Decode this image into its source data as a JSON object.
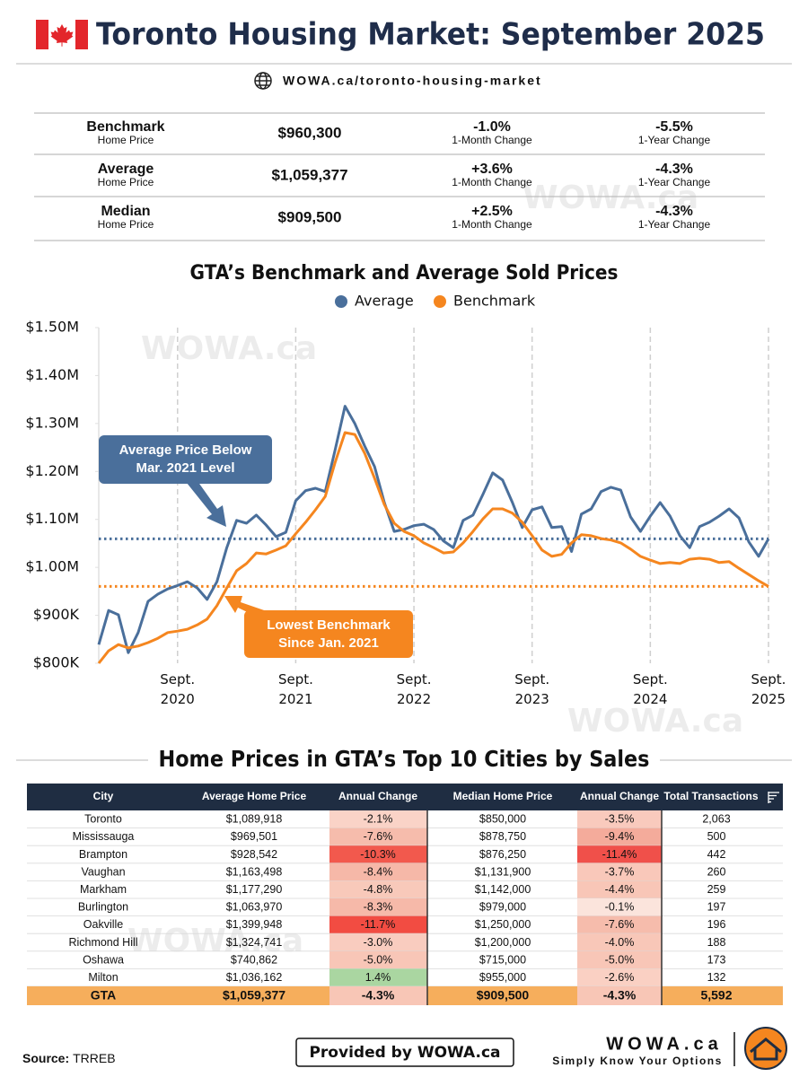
{
  "header": {
    "title": "Toronto Housing Market: September 2025",
    "url": "WOWA.ca/toronto-housing-market"
  },
  "watermark": "WOWA.ca",
  "summary": {
    "rows": [
      {
        "label": "Benchmark",
        "sublabel": "Home Price",
        "price": "$960,300",
        "month_change": "-1.0%",
        "month_label": "1-Month Change",
        "year_change": "-5.5%",
        "year_label": "1-Year Change"
      },
      {
        "label": "Average",
        "sublabel": "Home Price",
        "price": "$1,059,377",
        "month_change": "+3.6%",
        "month_label": "1-Month Change",
        "year_change": "-4.3%",
        "year_label": "1-Year Change"
      },
      {
        "label": "Median",
        "sublabel": "Home Price",
        "price": "$909,500",
        "month_change": "+2.5%",
        "month_label": "1-Month Change",
        "year_change": "-4.3%",
        "year_label": "1-Year Change"
      }
    ]
  },
  "chart_data": {
    "type": "line",
    "title": "GTA’s Benchmark and Average Sold Prices",
    "categories": [
      null,
      null,
      null,
      null,
      null,
      null,
      null,
      null,
      "Sept. 2020",
      null,
      null,
      null,
      null,
      null,
      null,
      null,
      null,
      null,
      null,
      null,
      "Sept. 2021",
      null,
      null,
      null,
      null,
      null,
      null,
      null,
      null,
      null,
      null,
      null,
      "Sept. 2022",
      null,
      null,
      null,
      null,
      null,
      null,
      null,
      null,
      null,
      null,
      null,
      "Sept. 2023",
      null,
      null,
      null,
      null,
      null,
      null,
      null,
      null,
      null,
      null,
      null,
      "Sept. 2024",
      null,
      null,
      null,
      null,
      null,
      null,
      null,
      null,
      null,
      null,
      null,
      "Sept. 2025"
    ],
    "series": [
      {
        "name": "Average",
        "color": "#4a6f9b",
        "values": [
          839000,
          910000,
          901000,
          822000,
          864000,
          929000,
          944000,
          955000,
          962000,
          970000,
          957000,
          933000,
          970000,
          1041000,
          1098000,
          1092000,
          1109000,
          1088000,
          1064000,
          1073000,
          1139000,
          1160000,
          1165000,
          1158000,
          1245000,
          1336000,
          1300000,
          1253000,
          1210000,
          1135000,
          1075000,
          1079000,
          1087000,
          1090000,
          1079000,
          1055000,
          1041000,
          1098000,
          1109000,
          1152000,
          1197000,
          1182000,
          1135000,
          1083000,
          1120000,
          1126000,
          1083000,
          1085000,
          1033000,
          1111000,
          1122000,
          1158000,
          1167000,
          1161000,
          1105000,
          1075000,
          1107000,
          1135000,
          1107000,
          1066000,
          1041000,
          1085000,
          1094000,
          1107000,
          1122000,
          1103000,
          1053000,
          1023000,
          1059377
        ]
      },
      {
        "name": "Benchmark",
        "color": "#f5861f",
        "values": [
          800000,
          826000,
          839000,
          832000,
          836000,
          843000,
          852000,
          864000,
          867000,
          871000,
          880000,
          892000,
          920000,
          957000,
          993000,
          1008000,
          1030000,
          1028000,
          1036000,
          1045000,
          1070000,
          1094000,
          1120000,
          1148000,
          1219000,
          1281000,
          1277000,
          1238000,
          1186000,
          1131000,
          1092000,
          1075000,
          1066000,
          1051000,
          1041000,
          1030000,
          1032000,
          1051000,
          1075000,
          1101000,
          1122000,
          1122000,
          1113000,
          1094000,
          1066000,
          1036000,
          1023000,
          1027000,
          1051000,
          1068000,
          1066000,
          1060000,
          1057000,
          1051000,
          1038000,
          1023000,
          1015000,
          1008000,
          1010000,
          1008000,
          1017000,
          1019000,
          1017000,
          1010000,
          1012000,
          998000,
          985000,
          972000,
          960300
        ]
      }
    ],
    "reference_lines": [
      {
        "value": 1059377,
        "color": "#4a6f9b"
      },
      {
        "value": 960300,
        "color": "#f5861f"
      }
    ],
    "ylim": [
      800000,
      1500000
    ],
    "yticks": [
      {
        "value": 800000,
        "label": "$800K"
      },
      {
        "value": 900000,
        "label": "$900K"
      },
      {
        "value": 1000000,
        "label": "$1.00M"
      },
      {
        "value": 1100000,
        "label": "$1.10M"
      },
      {
        "value": 1200000,
        "label": "$1.20M"
      },
      {
        "value": 1300000,
        "label": "$1.30M"
      },
      {
        "value": 1400000,
        "label": "$1.40M"
      },
      {
        "value": 1500000,
        "label": "$1.50M"
      }
    ],
    "x_grid": true,
    "legend": "top",
    "annotations": [
      {
        "lines": [
          "Average Price Below",
          "Mar. 2021 Level"
        ],
        "color": "#4a6f9b"
      },
      {
        "lines": [
          "Lowest Benchmark",
          "Since Jan. 2021"
        ],
        "color": "#f5861f"
      }
    ]
  },
  "cities": {
    "title": "Home Prices in GTA’s Top 10 Cities by Sales",
    "columns": [
      "City",
      "Average Home Price",
      "Annual Change",
      "Median Home Price",
      "Annual Change",
      "Total Transactions"
    ],
    "rows": [
      [
        "Toronto",
        "$1,089,918",
        "-2.1%",
        "$850,000",
        "-3.5%",
        "2,063"
      ],
      [
        "Mississauga",
        "$969,501",
        "-7.6%",
        "$878,750",
        "-9.4%",
        "500"
      ],
      [
        "Brampton",
        "$928,542",
        "-10.3%",
        "$876,250",
        "-11.4%",
        "442"
      ],
      [
        "Vaughan",
        "$1,163,498",
        "-8.4%",
        "$1,131,900",
        "-3.7%",
        "260"
      ],
      [
        "Markham",
        "$1,177,290",
        "-4.8%",
        "$1,142,000",
        "-4.4%",
        "259"
      ],
      [
        "Burlington",
        "$1,063,970",
        "-8.3%",
        "$979,000",
        "-0.1%",
        "197"
      ],
      [
        "Oakville",
        "$1,399,948",
        "-11.7%",
        "$1,250,000",
        "-7.6%",
        "196"
      ],
      [
        "Richmond Hill",
        "$1,324,741",
        "-3.0%",
        "$1,200,000",
        "-4.0%",
        "188"
      ],
      [
        "Oshawa",
        "$740,862",
        "-5.0%",
        "$715,000",
        "-5.0%",
        "173"
      ],
      [
        "Milton",
        "$1,036,162",
        "1.4%",
        "$955,000",
        "-2.6%",
        "132"
      ]
    ],
    "change_colors": [
      [
        "#fad3c7",
        "#f9cabd"
      ],
      [
        "#f6bcac",
        "#f4ab9b"
      ],
      [
        "#f2594d",
        "#f0504a"
      ],
      [
        "#f6b8a8",
        "#f9c8ba"
      ],
      [
        "#f8c9ba",
        "#f8c6b7"
      ],
      [
        "#f6b9a9",
        "#fbe4dc"
      ],
      [
        "#f24c42",
        "#f6bcac"
      ],
      [
        "#f9ccbf",
        "#f8c7b8"
      ],
      [
        "#f8c6b7",
        "#f8c6b7"
      ],
      [
        "#aad6a1",
        "#fad0c3"
      ]
    ],
    "total": [
      "GTA",
      "$1,059,377",
      "-4.3%",
      "$909,500",
      "-4.3%",
      "5,592"
    ],
    "total_change_colors": [
      "#f8c6b6",
      "#f8c6b6"
    ]
  },
  "footer": {
    "source_label": "Source:",
    "source": "TRREB",
    "provided": "Provided by WOWA.ca",
    "brand": "WOWA.ca",
    "tagline": "Simply Know Your Options"
  }
}
